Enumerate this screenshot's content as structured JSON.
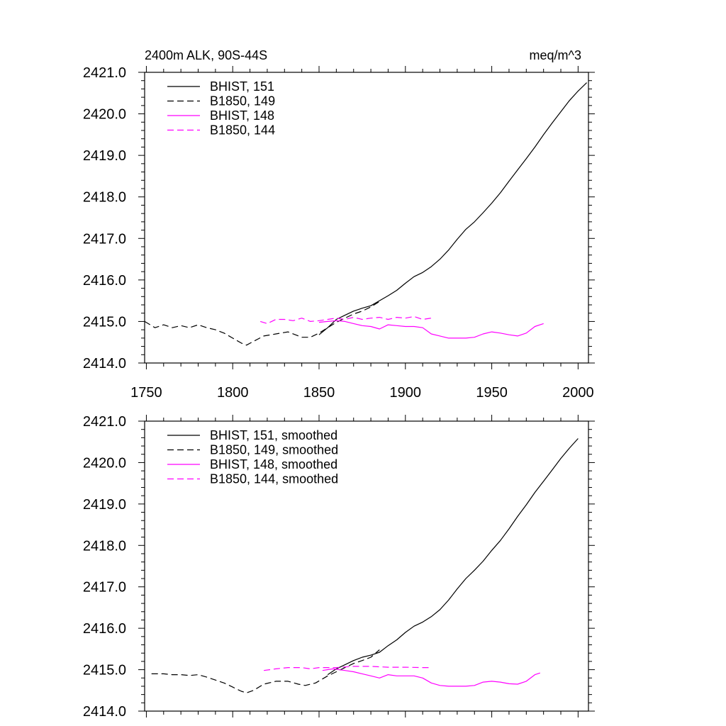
{
  "title_left": "2400m ALK, 90S-44S",
  "title_right": "meq/m^3",
  "colors": {
    "black": "#000000",
    "magenta": "#ff00ff"
  },
  "chart_data": [
    {
      "type": "line",
      "title": "2400m ALK, 90S-44S",
      "units": "meq/m^3",
      "xlim": [
        1749,
        2006
      ],
      "ylim": [
        2414.0,
        2421.0
      ],
      "xticks": [
        1750,
        1800,
        1850,
        1900,
        1950,
        2000
      ],
      "xtick_labels": [
        "1750",
        "1800",
        "1850",
        "1900",
        "1950",
        "2000"
      ],
      "yticks": [
        2414.0,
        2415.0,
        2416.0,
        2417.0,
        2418.0,
        2419.0,
        2420.0,
        2421.0
      ],
      "ytick_labels": [
        "2414.0",
        "2415.0",
        "2416.0",
        "2417.0",
        "2418.0",
        "2419.0",
        "2420.0",
        "2421.0"
      ],
      "legend_position": "top-left",
      "series": [
        {
          "name": "BHIST, 151",
          "color": "#000000",
          "dash": "solid",
          "points": [
            [
              1850,
              2414.68
            ],
            [
              1855,
              2414.85
            ],
            [
              1860,
              2415.05
            ],
            [
              1865,
              2415.15
            ],
            [
              1870,
              2415.25
            ],
            [
              1875,
              2415.32
            ],
            [
              1880,
              2415.38
            ],
            [
              1885,
              2415.5
            ],
            [
              1890,
              2415.62
            ],
            [
              1895,
              2415.75
            ],
            [
              1900,
              2415.92
            ],
            [
              1905,
              2416.08
            ],
            [
              1910,
              2416.18
            ],
            [
              1915,
              2416.32
            ],
            [
              1920,
              2416.5
            ],
            [
              1925,
              2416.72
            ],
            [
              1930,
              2416.98
            ],
            [
              1935,
              2417.22
            ],
            [
              1940,
              2417.4
            ],
            [
              1945,
              2417.62
            ],
            [
              1950,
              2417.85
            ],
            [
              1955,
              2418.1
            ],
            [
              1960,
              2418.38
            ],
            [
              1965,
              2418.65
            ],
            [
              1970,
              2418.92
            ],
            [
              1975,
              2419.2
            ],
            [
              1980,
              2419.5
            ],
            [
              1985,
              2419.78
            ],
            [
              1990,
              2420.05
            ],
            [
              1995,
              2420.32
            ],
            [
              2000,
              2420.55
            ],
            [
              2005,
              2420.75
            ]
          ]
        },
        {
          "name": "B1850, 149",
          "color": "#000000",
          "dash": "dashed",
          "points": [
            [
              1749,
              2415.0
            ],
            [
              1755,
              2414.85
            ],
            [
              1760,
              2414.92
            ],
            [
              1765,
              2414.85
            ],
            [
              1770,
              2414.9
            ],
            [
              1775,
              2414.85
            ],
            [
              1780,
              2414.92
            ],
            [
              1785,
              2414.85
            ],
            [
              1790,
              2414.8
            ],
            [
              1795,
              2414.72
            ],
            [
              1800,
              2414.6
            ],
            [
              1805,
              2414.48
            ],
            [
              1808,
              2414.43
            ],
            [
              1812,
              2414.52
            ],
            [
              1818,
              2414.65
            ],
            [
              1825,
              2414.7
            ],
            [
              1832,
              2414.75
            ],
            [
              1840,
              2414.62
            ],
            [
              1845,
              2414.62
            ],
            [
              1850,
              2414.72
            ],
            [
              1855,
              2414.85
            ],
            [
              1860,
              2414.98
            ],
            [
              1865,
              2415.08
            ],
            [
              1870,
              2415.18
            ],
            [
              1875,
              2415.25
            ],
            [
              1880,
              2415.35
            ],
            [
              1885,
              2415.48
            ]
          ]
        },
        {
          "name": "BHIST, 148",
          "color": "#ff00ff",
          "dash": "solid",
          "points": [
            [
              1850,
              2414.98
            ],
            [
              1855,
              2415.0
            ],
            [
              1860,
              2415.02
            ],
            [
              1865,
              2415.0
            ],
            [
              1870,
              2414.95
            ],
            [
              1875,
              2414.9
            ],
            [
              1880,
              2414.88
            ],
            [
              1885,
              2414.82
            ],
            [
              1890,
              2414.92
            ],
            [
              1895,
              2414.9
            ],
            [
              1900,
              2414.88
            ],
            [
              1905,
              2414.88
            ],
            [
              1910,
              2414.85
            ],
            [
              1915,
              2414.7
            ],
            [
              1920,
              2414.65
            ],
            [
              1925,
              2414.6
            ],
            [
              1930,
              2414.6
            ],
            [
              1935,
              2414.6
            ],
            [
              1940,
              2414.62
            ],
            [
              1945,
              2414.7
            ],
            [
              1950,
              2414.75
            ],
            [
              1955,
              2414.72
            ],
            [
              1960,
              2414.68
            ],
            [
              1965,
              2414.65
            ],
            [
              1970,
              2414.72
            ],
            [
              1975,
              2414.88
            ],
            [
              1980,
              2414.95
            ]
          ]
        },
        {
          "name": "B1850, 144",
          "color": "#ff00ff",
          "dash": "dashed",
          "points": [
            [
              1816,
              2415.0
            ],
            [
              1820,
              2414.95
            ],
            [
              1825,
              2415.05
            ],
            [
              1830,
              2415.05
            ],
            [
              1835,
              2415.02
            ],
            [
              1840,
              2415.08
            ],
            [
              1845,
              2415.0
            ],
            [
              1850,
              2415.02
            ],
            [
              1855,
              2415.05
            ],
            [
              1860,
              2415.08
            ],
            [
              1865,
              2415.05
            ],
            [
              1870,
              2415.1
            ],
            [
              1875,
              2415.05
            ],
            [
              1880,
              2415.08
            ],
            [
              1885,
              2415.1
            ],
            [
              1890,
              2415.05
            ],
            [
              1895,
              2415.1
            ],
            [
              1900,
              2415.08
            ],
            [
              1905,
              2415.12
            ],
            [
              1910,
              2415.05
            ],
            [
              1915,
              2415.08
            ]
          ]
        }
      ]
    },
    {
      "type": "line",
      "xlim": [
        1749,
        2006
      ],
      "ylim": [
        2414.0,
        2421.0
      ],
      "xticks": [
        1750,
        1800,
        1850,
        1900,
        1950,
        2000
      ],
      "yticks": [
        2414.0,
        2415.0,
        2416.0,
        2417.0,
        2418.0,
        2419.0,
        2420.0,
        2421.0
      ],
      "ytick_labels": [
        "2414.0",
        "2415.0",
        "2416.0",
        "2417.0",
        "2418.0",
        "2419.0",
        "2420.0",
        "2421.0"
      ],
      "legend_position": "top-left",
      "series": [
        {
          "name": "BHIST, 151, smoothed",
          "color": "#000000",
          "dash": "solid",
          "points": [
            [
              1855,
              2414.88
            ],
            [
              1860,
              2415.02
            ],
            [
              1865,
              2415.12
            ],
            [
              1870,
              2415.22
            ],
            [
              1875,
              2415.3
            ],
            [
              1880,
              2415.35
            ],
            [
              1885,
              2415.42
            ],
            [
              1890,
              2415.58
            ],
            [
              1895,
              2415.72
            ],
            [
              1900,
              2415.9
            ],
            [
              1905,
              2416.05
            ],
            [
              1910,
              2416.15
            ],
            [
              1915,
              2416.28
            ],
            [
              1920,
              2416.45
            ],
            [
              1925,
              2416.68
            ],
            [
              1930,
              2416.95
            ],
            [
              1935,
              2417.2
            ],
            [
              1940,
              2417.4
            ],
            [
              1945,
              2417.62
            ],
            [
              1950,
              2417.88
            ],
            [
              1955,
              2418.12
            ],
            [
              1960,
              2418.4
            ],
            [
              1965,
              2418.7
            ],
            [
              1970,
              2418.98
            ],
            [
              1975,
              2419.28
            ],
            [
              1980,
              2419.55
            ],
            [
              1985,
              2419.82
            ],
            [
              1990,
              2420.1
            ],
            [
              1995,
              2420.35
            ],
            [
              2000,
              2420.58
            ]
          ]
        },
        {
          "name": "B1850, 149, smoothed",
          "color": "#000000",
          "dash": "dashed",
          "points": [
            [
              1753,
              2414.9
            ],
            [
              1760,
              2414.9
            ],
            [
              1765,
              2414.88
            ],
            [
              1770,
              2414.88
            ],
            [
              1775,
              2414.86
            ],
            [
              1780,
              2414.88
            ],
            [
              1785,
              2414.82
            ],
            [
              1790,
              2414.75
            ],
            [
              1795,
              2414.68
            ],
            [
              1800,
              2414.58
            ],
            [
              1805,
              2414.48
            ],
            [
              1808,
              2414.44
            ],
            [
              1812,
              2414.5
            ],
            [
              1818,
              2414.65
            ],
            [
              1825,
              2414.72
            ],
            [
              1832,
              2414.72
            ],
            [
              1838,
              2414.65
            ],
            [
              1842,
              2414.62
            ],
            [
              1848,
              2414.68
            ],
            [
              1855,
              2414.85
            ],
            [
              1860,
              2414.95
            ],
            [
              1865,
              2415.05
            ],
            [
              1870,
              2415.15
            ],
            [
              1875,
              2415.22
            ],
            [
              1880,
              2415.3
            ],
            [
              1885,
              2415.48
            ]
          ]
        },
        {
          "name": "BHIST, 148, smoothed",
          "color": "#ff00ff",
          "dash": "solid",
          "points": [
            [
              1852,
              2414.98
            ],
            [
              1858,
              2415.02
            ],
            [
              1865,
              2414.98
            ],
            [
              1870,
              2414.95
            ],
            [
              1875,
              2414.9
            ],
            [
              1880,
              2414.85
            ],
            [
              1885,
              2414.8
            ],
            [
              1890,
              2414.88
            ],
            [
              1895,
              2414.85
            ],
            [
              1900,
              2414.85
            ],
            [
              1905,
              2414.85
            ],
            [
              1910,
              2414.8
            ],
            [
              1915,
              2414.68
            ],
            [
              1920,
              2414.62
            ],
            [
              1925,
              2414.6
            ],
            [
              1930,
              2414.6
            ],
            [
              1935,
              2414.6
            ],
            [
              1940,
              2414.62
            ],
            [
              1945,
              2414.7
            ],
            [
              1950,
              2414.72
            ],
            [
              1955,
              2414.7
            ],
            [
              1960,
              2414.66
            ],
            [
              1965,
              2414.65
            ],
            [
              1970,
              2414.72
            ],
            [
              1975,
              2414.88
            ],
            [
              1978,
              2414.92
            ]
          ]
        },
        {
          "name": "B1850, 144, smoothed",
          "color": "#ff00ff",
          "dash": "dashed",
          "points": [
            [
              1818,
              2414.98
            ],
            [
              1825,
              2415.02
            ],
            [
              1832,
              2415.05
            ],
            [
              1840,
              2415.05
            ],
            [
              1845,
              2415.02
            ],
            [
              1850,
              2415.05
            ],
            [
              1855,
              2415.05
            ],
            [
              1860,
              2415.05
            ],
            [
              1870,
              2415.08
            ],
            [
              1880,
              2415.08
            ],
            [
              1890,
              2415.06
            ],
            [
              1900,
              2415.06
            ],
            [
              1910,
              2415.05
            ],
            [
              1915,
              2415.05
            ]
          ]
        }
      ]
    }
  ]
}
